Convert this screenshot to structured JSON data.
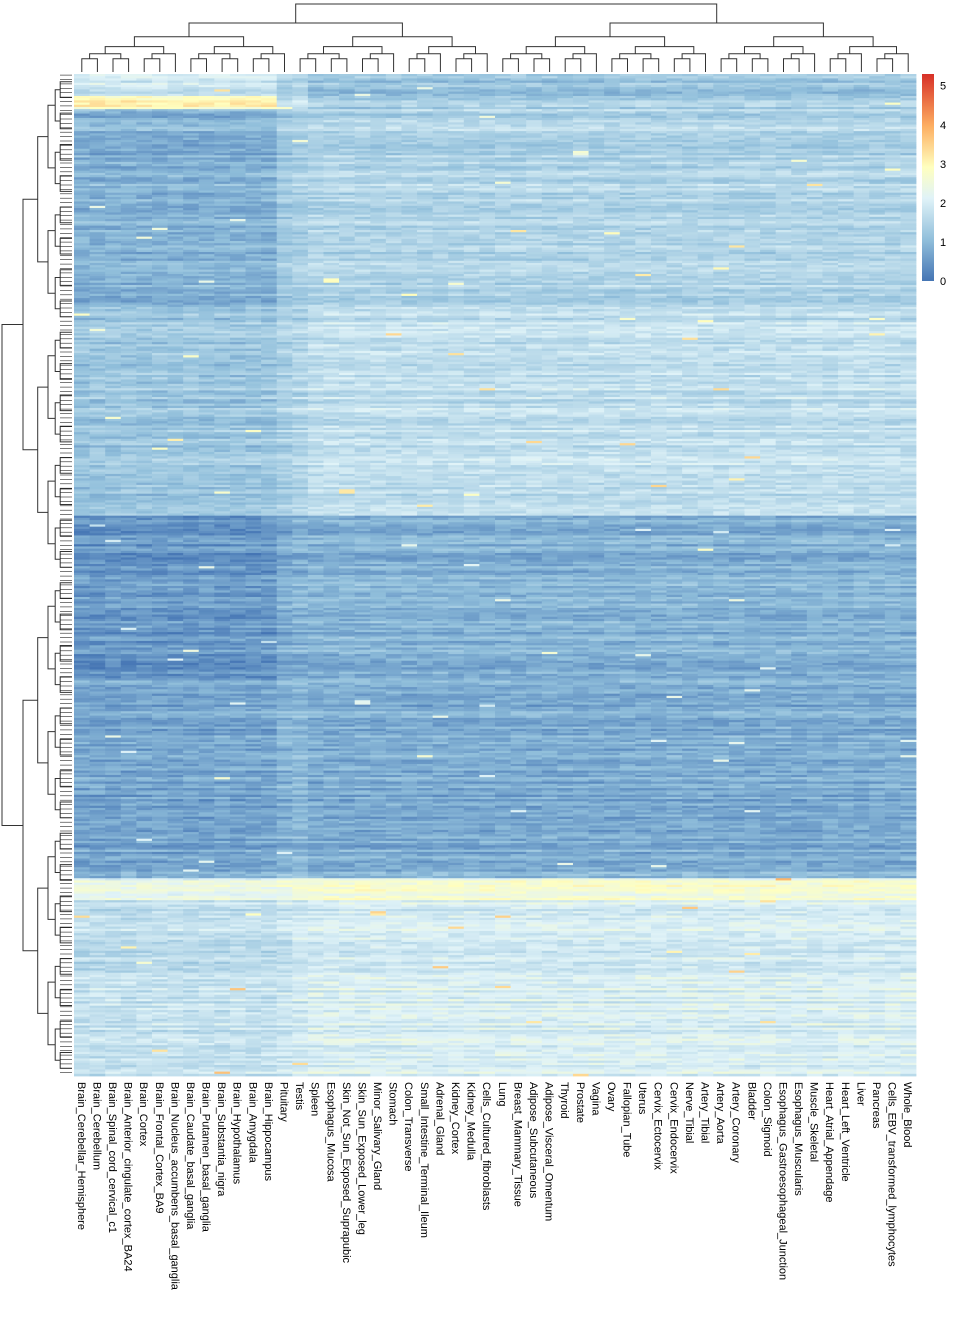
{
  "chart_data": {
    "type": "heatmap",
    "title": "",
    "columns": [
      "Brain_Cerebellar_Hemisphere",
      "Brain_Cerebellum",
      "Brain_Spinal_cord_cervical_c1",
      "Brain_Anterior_cingulate_cortex_BA24",
      "Brain_Cortex",
      "Brain_Frontal_Cortex_BA9",
      "Brain_Nucleus_accumbens_basal_ganglia",
      "Brain_Caudate_basal_ganglia",
      "Brain_Putamen_basal_ganglia",
      "Brain_Substantia_nigra",
      "Brain_Hypothalamus",
      "Brain_Amygdala",
      "Brain_Hippocampus",
      "Pituitary",
      "Testis",
      "Spleen",
      "Esophagus_Mucosa",
      "Skin_Not_Sun_Exposed_Suprapubic",
      "Skin_Sun_Exposed_Lower_leg",
      "Minor_Salivary_Gland",
      "Stomach",
      "Colon_Transverse",
      "Small_Intestine_Terminal_Ileum",
      "Adrenal_Gland",
      "Kidney_Cortex",
      "Kidney_Medulla",
      "Cells_Cultured_fibroblasts",
      "Lung",
      "Breast_Mammary_Tissue",
      "Adipose_Subcutaneous",
      "Adipose_Visceral_Omentum",
      "Thyroid",
      "Prostate",
      "Vagina",
      "Ovary",
      "Fallopian_Tube",
      "Uterus",
      "Cervix_Ectocervix",
      "Cervix_Endocervix",
      "Nerve_Tibial",
      "Artery_Tibial",
      "Artery_Aorta",
      "Artery_Coronary",
      "Bladder",
      "Colon_Sigmoid",
      "Esophagus_Gastroesophageal_Junction",
      "Esophagus_Muscularis",
      "Muscle_Skeletal",
      "Heart_Atrial_Appendage",
      "Heart_Left_Ventricle",
      "Liver",
      "Pancreas",
      "Cells_EBV_transformed_lymphocytes",
      "Whole_Blood"
    ],
    "color_scale": {
      "range": [
        0,
        5.3
      ],
      "ticks": [
        "0",
        "1",
        "2",
        "3",
        "4",
        "5"
      ],
      "low_color": "#4575b4",
      "mid_color": "#ffffbf",
      "high_color": "#d73027"
    },
    "row_blocks": [
      {
        "rows": 10,
        "brain": 1.9,
        "other": 1.2,
        "pituitary": 1.4,
        "testis": 1.5
      },
      {
        "rows": 6,
        "brain": 2.9,
        "other": 1.3,
        "pituitary": 1.6,
        "testis": 1.6
      },
      {
        "rows": 90,
        "brain": 0.9,
        "other": 1.5,
        "pituitary": 1.3,
        "testis": 1.4
      },
      {
        "rows": 95,
        "brain": 1.2,
        "other": 1.7,
        "pituitary": 1.4,
        "testis": 1.5
      },
      {
        "rows": 75,
        "brain": 0.5,
        "other": 0.9,
        "pituitary": 0.8,
        "testis": 0.9
      },
      {
        "rows": 90,
        "brain": 0.7,
        "other": 0.8,
        "pituitary": 0.9,
        "testis": 1.0
      },
      {
        "rows": 10,
        "brain": 2.3,
        "other": 2.6,
        "pituitary": 2.4,
        "testis": 2.5
      },
      {
        "rows": 80,
        "brain": 1.7,
        "other": 2.0,
        "pituitary": 1.8,
        "testis": 1.9
      }
    ],
    "xlabel": "",
    "ylabel": ""
  }
}
